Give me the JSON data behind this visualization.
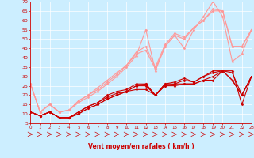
{
  "x": [
    0,
    1,
    2,
    3,
    4,
    5,
    6,
    7,
    8,
    9,
    10,
    11,
    12,
    13,
    14,
    15,
    16,
    17,
    18,
    19,
    20,
    21,
    22,
    23
  ],
  "series_light": [
    [
      26,
      11,
      15,
      11,
      12,
      16,
      19,
      22,
      26,
      30,
      35,
      41,
      55,
      33,
      46,
      52,
      45,
      55,
      62,
      70,
      62,
      38,
      42,
      55
    ],
    [
      26,
      11,
      15,
      11,
      12,
      17,
      20,
      23,
      27,
      31,
      36,
      42,
      44,
      34,
      46,
      52,
      50,
      56,
      60,
      65,
      65,
      46,
      46,
      55
    ],
    [
      26,
      11,
      15,
      11,
      12,
      17,
      20,
      24,
      28,
      32,
      36,
      43,
      46,
      35,
      47,
      53,
      51,
      56,
      60,
      66,
      65,
      46,
      46,
      55
    ]
  ],
  "series_dark": [
    [
      11,
      9,
      11,
      8,
      8,
      10,
      13,
      15,
      18,
      20,
      22,
      23,
      23,
      20,
      25,
      25,
      26,
      26,
      28,
      30,
      33,
      33,
      15,
      30
    ],
    [
      11,
      9,
      11,
      8,
      8,
      10,
      13,
      15,
      18,
      20,
      22,
      25,
      25,
      20,
      25,
      26,
      28,
      27,
      30,
      32,
      33,
      28,
      20,
      30
    ],
    [
      11,
      9,
      11,
      8,
      8,
      11,
      14,
      16,
      19,
      21,
      22,
      25,
      26,
      20,
      26,
      26,
      26,
      26,
      28,
      28,
      33,
      32,
      20,
      30
    ],
    [
      11,
      9,
      11,
      8,
      8,
      11,
      14,
      16,
      20,
      22,
      23,
      26,
      26,
      20,
      26,
      27,
      29,
      27,
      30,
      33,
      33,
      28,
      20,
      30
    ]
  ],
  "color_light": "#ff9999",
  "color_dark": "#cc0000",
  "bg_color": "#cceeff",
  "grid_color": "#aaddcc",
  "ylim": [
    5,
    70
  ],
  "xlim": [
    0,
    23
  ],
  "yticks": [
    5,
    10,
    15,
    20,
    25,
    30,
    35,
    40,
    45,
    50,
    55,
    60,
    65,
    70
  ],
  "xticks": [
    0,
    1,
    2,
    3,
    4,
    5,
    6,
    7,
    8,
    9,
    10,
    11,
    12,
    13,
    14,
    15,
    16,
    17,
    18,
    19,
    20,
    21,
    22,
    23
  ],
  "xlabel": "Vent moyen/en rafales ( km/h )",
  "xlabel_color": "#cc0000",
  "tick_color": "#cc0000",
  "lw": 0.8,
  "marker": "D",
  "markersize": 1.5,
  "arrow_color": "#cc0000"
}
